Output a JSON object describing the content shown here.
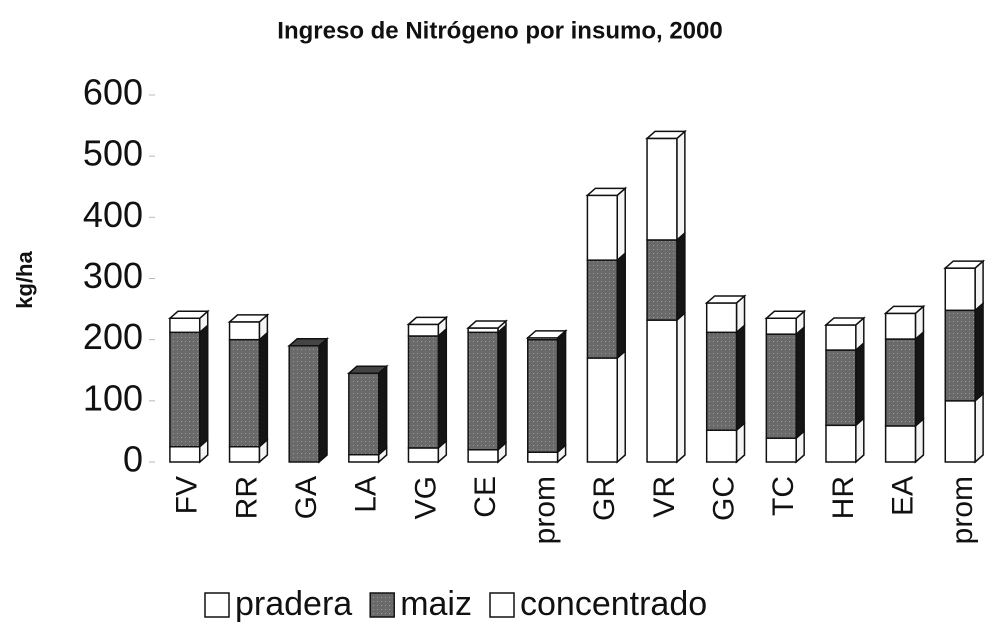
{
  "chart_data": {
    "type": "bar",
    "stacked": true,
    "title": "Ingreso de Nitrógeno por insumo, 2000",
    "y_label": "kg/ha",
    "categories": [
      "FV",
      "RR",
      "GA",
      "LA",
      "VG",
      "CE",
      "prom",
      "GR",
      "VR",
      "GC",
      "TC",
      "HR",
      "EA",
      "prom"
    ],
    "series": [
      {
        "name": "pradera",
        "color": "#ffffff",
        "values": [
          25,
          25,
          0,
          12,
          23,
          20,
          16,
          170,
          232,
          52,
          39,
          60,
          59,
          100
        ]
      },
      {
        "name": "maiz",
        "color": "#6a6a6a",
        "values": [
          187,
          175,
          190,
          133,
          183,
          192,
          184,
          160,
          131,
          160,
          170,
          123,
          142,
          148
        ]
      },
      {
        "name": "concentrado",
        "color": "#ffffff",
        "values": [
          23,
          29,
          0,
          0,
          19,
          7,
          3,
          106,
          166,
          48,
          26,
          41,
          42,
          69
        ]
      }
    ],
    "ylim": [
      0,
      600
    ],
    "yticks": [
      0,
      100,
      200,
      300,
      400,
      500,
      600
    ],
    "grid": false,
    "legend": "bottom"
  }
}
